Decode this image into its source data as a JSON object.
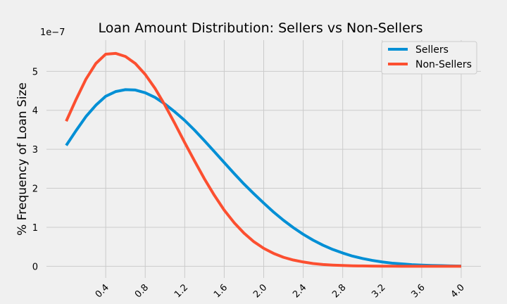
{
  "chart_data": {
    "type": "line",
    "title": "Loan Amount Distribution: Sellers vs Non-Sellers",
    "xlabel": "",
    "ylabel": "% Frequency of Loan Size",
    "y_offset_label": "1e−7",
    "xlim": [
      -0.2,
      4.2
    ],
    "ylim": [
      -0.3,
      5.8
    ],
    "x_ticks": [
      "0.4",
      "0.8",
      "1.2",
      "1.6",
      "2.0",
      "2.4",
      "2.8",
      "3.2",
      "3.6",
      "4.0"
    ],
    "x_tick_values": [
      0.4,
      0.8,
      1.2,
      1.6,
      2.0,
      2.4,
      2.8,
      3.2,
      3.6,
      4.0
    ],
    "y_ticks": [
      "0",
      "1",
      "2",
      "3",
      "4",
      "5"
    ],
    "y_tick_values": [
      0,
      1,
      2,
      3,
      4,
      5
    ],
    "grid": true,
    "legend_position": "top-right",
    "x": [
      0.0,
      0.1,
      0.2,
      0.3,
      0.4,
      0.5,
      0.6,
      0.7,
      0.8,
      0.9,
      1.0,
      1.1,
      1.2,
      1.3,
      1.4,
      1.5,
      1.6,
      1.7,
      1.8,
      1.9,
      2.0,
      2.1,
      2.2,
      2.3,
      2.4,
      2.5,
      2.6,
      2.7,
      2.8,
      2.9,
      3.0,
      3.1,
      3.2,
      3.3,
      3.4,
      3.5,
      3.6,
      3.7,
      3.8,
      3.9,
      4.0
    ],
    "series": [
      {
        "name": "Sellers",
        "color": "#008fd5",
        "values": [
          3.1,
          3.48,
          3.84,
          4.13,
          4.36,
          4.48,
          4.53,
          4.52,
          4.45,
          4.33,
          4.16,
          3.96,
          3.74,
          3.49,
          3.22,
          2.94,
          2.66,
          2.38,
          2.11,
          1.86,
          1.62,
          1.39,
          1.18,
          0.99,
          0.82,
          0.67,
          0.54,
          0.43,
          0.34,
          0.26,
          0.2,
          0.15,
          0.11,
          0.08,
          0.06,
          0.04,
          0.03,
          0.02,
          0.015,
          0.01,
          0.005
        ]
      },
      {
        "name": "Non-Sellers",
        "color": "#fc4f30",
        "values": [
          3.72,
          4.28,
          4.8,
          5.2,
          5.44,
          5.46,
          5.38,
          5.2,
          4.92,
          4.56,
          4.13,
          3.66,
          3.17,
          2.7,
          2.24,
          1.82,
          1.44,
          1.12,
          0.85,
          0.63,
          0.46,
          0.33,
          0.23,
          0.16,
          0.11,
          0.07,
          0.045,
          0.03,
          0.02,
          0.012,
          0.008,
          0.005,
          0.003,
          0.002,
          0.001,
          0.0,
          0.0,
          0.0,
          0.0,
          0.0,
          0.0
        ]
      }
    ]
  }
}
